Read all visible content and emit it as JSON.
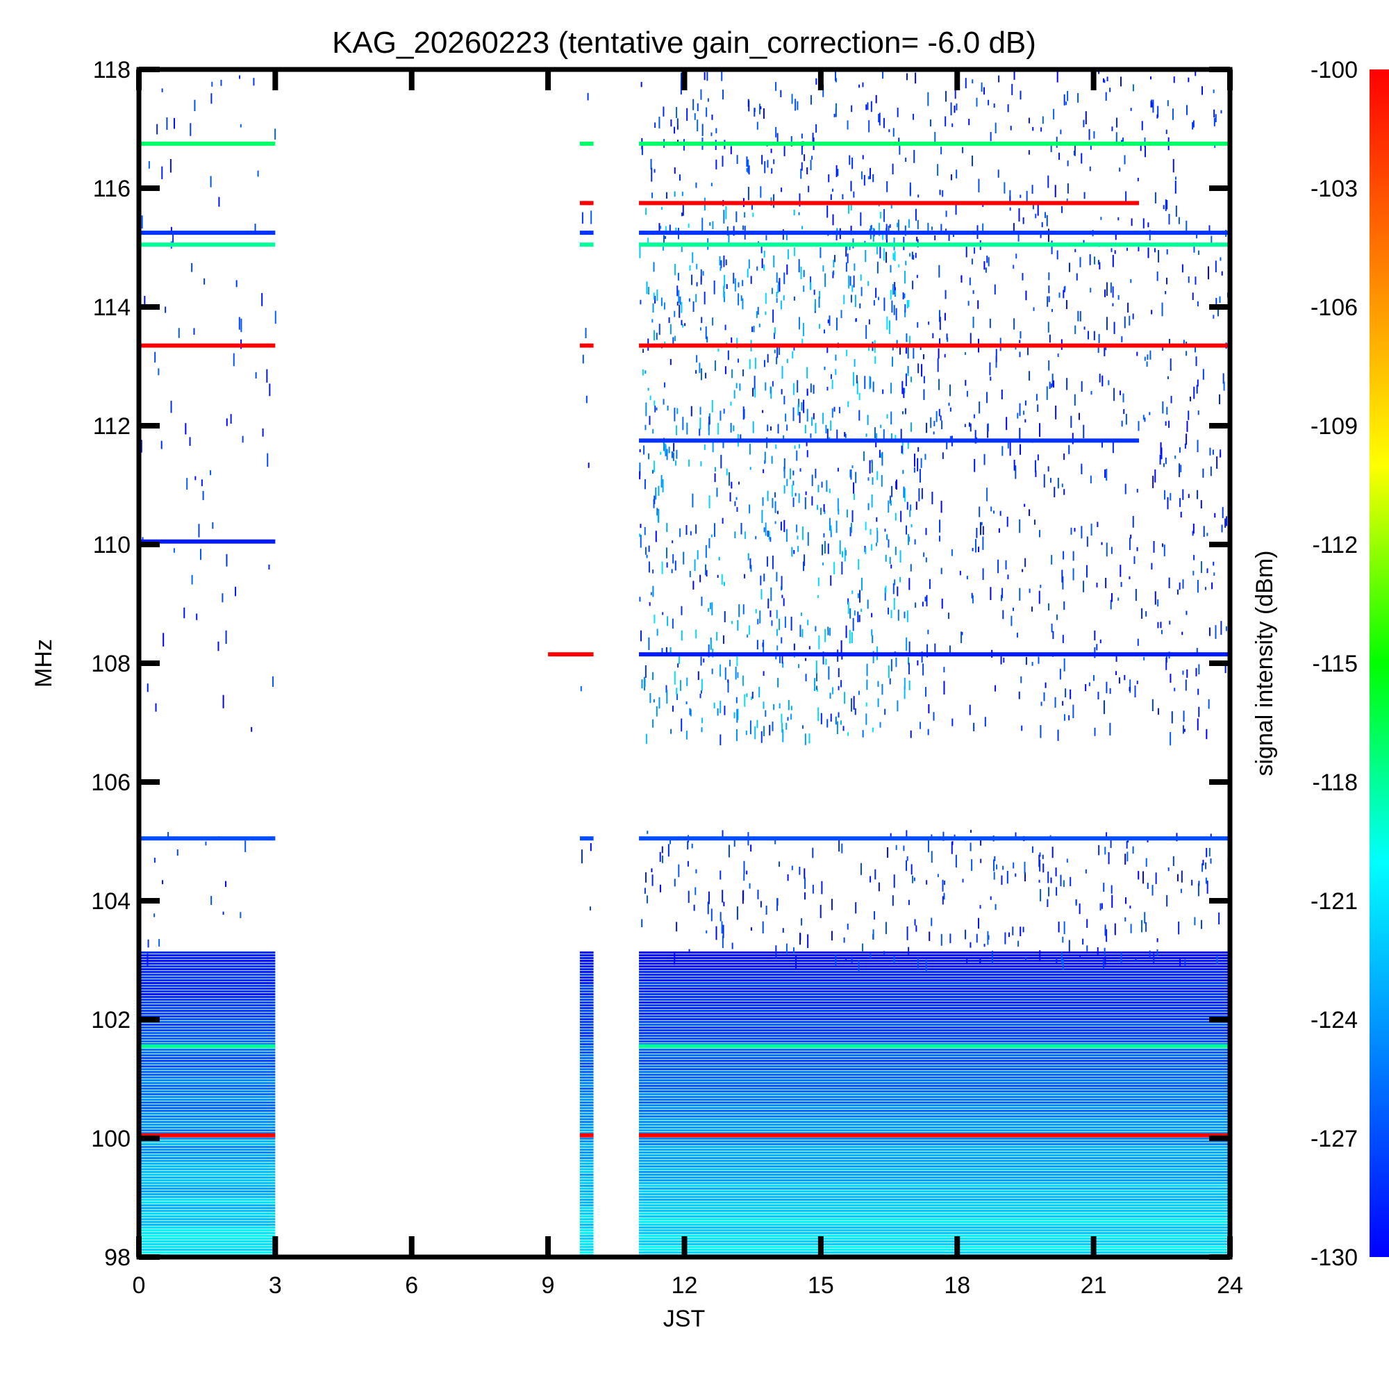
{
  "chart_data": {
    "type": "heatmap",
    "title": "KAG_20260223 (tentative gain_correction= -6.0 dB)",
    "xlabel": "JST",
    "ylabel": "MHz",
    "xlim": [
      0,
      24
    ],
    "ylim": [
      98,
      118
    ],
    "x_ticks": [
      "0",
      "3",
      "6",
      "9",
      "12",
      "15",
      "18",
      "21",
      "24"
    ],
    "y_ticks": [
      "98",
      "100",
      "102",
      "104",
      "106",
      "108",
      "110",
      "112",
      "114",
      "116",
      "118"
    ],
    "colorbar": {
      "label": "signal intensity (dBm)",
      "range": [
        -130,
        -100
      ],
      "ticks": [
        "-100",
        "-103",
        "-106",
        "-109",
        "-112",
        "-115",
        "-118",
        "-121",
        "-124",
        "-127",
        "-130"
      ],
      "colormap": [
        "#0000ff",
        "#0080ff",
        "#00ffff",
        "#00ff00",
        "#ffff00",
        "#ff8000",
        "#ff0000"
      ]
    },
    "data_coverage_jst": [
      [
        0.0,
        3.0
      ],
      [
        9.7,
        10.0
      ],
      [
        11.0,
        24.0
      ]
    ],
    "carrier_lines": [
      {
        "freq_mhz": 116.75,
        "dbm": -117,
        "segments": [
          [
            0.0,
            3.0
          ],
          [
            9.7,
            10.0
          ],
          [
            11.0,
            24.0
          ]
        ]
      },
      {
        "freq_mhz": 115.75,
        "dbm": -100,
        "segments": [
          [
            9.7,
            10.0
          ],
          [
            11.0,
            22.0
          ]
        ]
      },
      {
        "freq_mhz": 115.25,
        "dbm": -128,
        "segments": [
          [
            0.0,
            3.0
          ],
          [
            9.7,
            10.0
          ],
          [
            11.0,
            24.0
          ]
        ]
      },
      {
        "freq_mhz": 115.05,
        "dbm": -118,
        "segments": [
          [
            0.0,
            3.0
          ],
          [
            9.7,
            10.0
          ],
          [
            11.0,
            24.0
          ]
        ]
      },
      {
        "freq_mhz": 113.35,
        "dbm": -100,
        "segments": [
          [
            0.0,
            3.0
          ],
          [
            9.7,
            10.0
          ],
          [
            11.0,
            24.0
          ]
        ]
      },
      {
        "freq_mhz": 111.75,
        "dbm": -128,
        "segments": [
          [
            11.0,
            22.0
          ]
        ]
      },
      {
        "freq_mhz": 110.05,
        "dbm": -129,
        "segments": [
          [
            0.0,
            3.0
          ]
        ]
      },
      {
        "freq_mhz": 108.15,
        "dbm": -100,
        "segments": [
          [
            9.0,
            10.0
          ]
        ]
      },
      {
        "freq_mhz": 108.15,
        "dbm": -129,
        "segments": [
          [
            11.0,
            24.0
          ]
        ]
      },
      {
        "freq_mhz": 105.05,
        "dbm": -127,
        "segments": [
          [
            0.0,
            3.0
          ],
          [
            9.7,
            10.0
          ],
          [
            11.0,
            24.0
          ]
        ]
      },
      {
        "freq_mhz": 101.55,
        "dbm": -118,
        "segments": [
          [
            0.0,
            3.0
          ],
          [
            11.0,
            24.0
          ]
        ]
      },
      {
        "freq_mhz": 100.05,
        "dbm": -100,
        "segments": [
          [
            0.0,
            3.0
          ],
          [
            9.7,
            10.0
          ],
          [
            11.0,
            24.0
          ]
        ]
      }
    ]
  }
}
